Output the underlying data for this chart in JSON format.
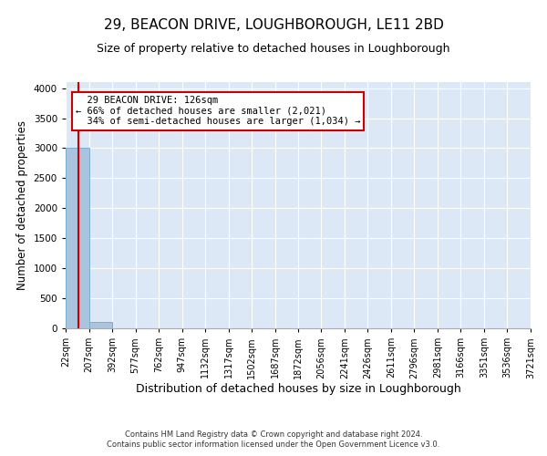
{
  "title_line1": "29, BEACON DRIVE, LOUGHBOROUGH, LE11 2BD",
  "title_line2": "Size of property relative to detached houses in Loughborough",
  "xlabel": "Distribution of detached houses by size in Loughborough",
  "ylabel": "Number of detached properties",
  "footnote1": "Contains HM Land Registry data © Crown copyright and database right 2024.",
  "footnote2": "Contains public sector information licensed under the Open Government Licence v3.0.",
  "bin_edges": [
    22,
    207,
    392,
    577,
    762,
    947,
    1132,
    1317,
    1502,
    1687,
    1872,
    2056,
    2241,
    2426,
    2611,
    2796,
    2981,
    3166,
    3351,
    3536,
    3721
  ],
  "bar_heights": [
    3000,
    100,
    0,
    0,
    0,
    0,
    0,
    0,
    0,
    0,
    0,
    0,
    0,
    0,
    0,
    0,
    0,
    0,
    0,
    0
  ],
  "bar_color": "#aac4e0",
  "bar_edgecolor": "#7aafd0",
  "property_size": 126,
  "property_label": "29 BEACON DRIVE: 126sqm",
  "pct_smaller": 66,
  "count_smaller": 2021,
  "pct_larger": 34,
  "count_larger": 1034,
  "vline_color": "#cc0000",
  "annotation_box_edgecolor": "#cc0000",
  "annotation_box_facecolor": "#ffffff",
  "ylim": [
    0,
    4100
  ],
  "yticks": [
    0,
    500,
    1000,
    1500,
    2000,
    2500,
    3000,
    3500,
    4000
  ],
  "bg_color": "#dce8f5",
  "grid_color": "#ffffff",
  "title_fontsize": 11,
  "subtitle_fontsize": 9,
  "tick_label_fontsize": 7,
  "ylabel_fontsize": 8.5,
  "xlabel_fontsize": 9,
  "annotation_fontsize": 7.5,
  "footnote_fontsize": 6
}
